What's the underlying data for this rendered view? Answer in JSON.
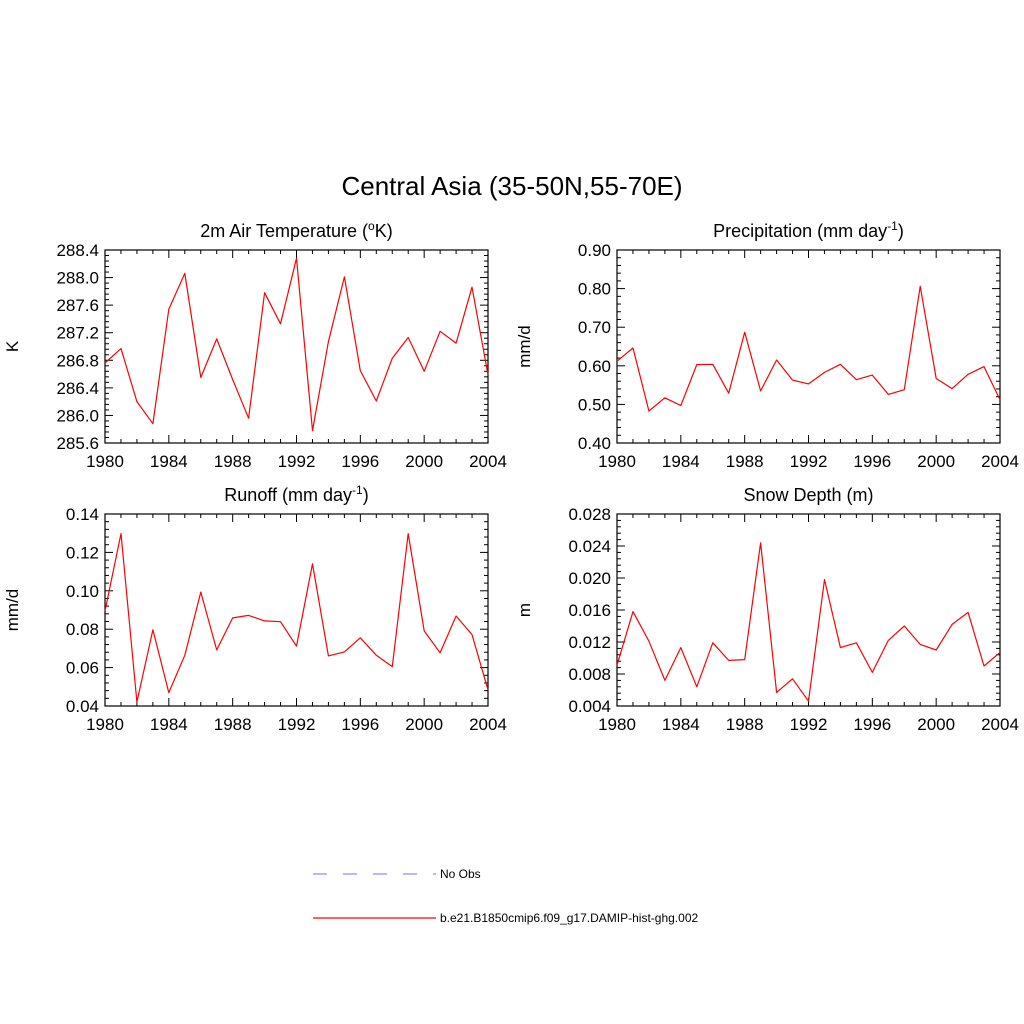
{
  "figure_title": "Central Asia (35-50N,55-70E)",
  "legend": [
    {
      "label": "No Obs",
      "color": "#8c8cff",
      "style": "dashed"
    },
    {
      "label": "b.e21.B1850cmip6.f09_g17.DAMIP-hist-ghg.002",
      "color": "#ff0000",
      "style": "solid"
    }
  ],
  "chart_data": [
    {
      "type": "line",
      "title": "2m Air Temperature (°K)",
      "title_main": "2m Air Temperature (",
      "title_sup": "o",
      "title_tail": "K)",
      "ylabel": "K",
      "xlim": [
        1980,
        2004
      ],
      "ylim": [
        285.6,
        288.4
      ],
      "xticks": [
        1980,
        1984,
        1988,
        1992,
        1996,
        2000,
        2004
      ],
      "yticks": [
        "285.6",
        "286.0",
        "286.4",
        "286.8",
        "287.2",
        "287.6",
        "288.0",
        "288.4"
      ],
      "series": [
        {
          "color": "#ff0000",
          "x": [
            1980,
            1981,
            1982,
            1983,
            1984,
            1985,
            1986,
            1987,
            1988,
            1989,
            1990,
            1991,
            1992,
            1993,
            1994,
            1995,
            1996,
            1997,
            1998,
            1999,
            2000,
            2001,
            2002,
            2003,
            2004
          ],
          "values": [
            286.76,
            286.97,
            286.2,
            285.88,
            287.54,
            288.06,
            286.55,
            287.11,
            286.52,
            285.96,
            287.78,
            287.33,
            288.28,
            285.78,
            287.07,
            288.01,
            286.65,
            286.21,
            286.83,
            287.13,
            286.64,
            287.22,
            287.05,
            287.86,
            286.59
          ]
        }
      ]
    },
    {
      "type": "line",
      "title": "Precipitation (mm day-1)",
      "title_main": "Precipitation (mm day",
      "title_sup": "-1",
      "title_tail": ")",
      "ylabel": "mm/d",
      "xlim": [
        1980,
        2004
      ],
      "ylim": [
        0.4,
        0.9
      ],
      "xticks": [
        1980,
        1984,
        1988,
        1992,
        1996,
        2000,
        2004
      ],
      "yticks": [
        "0.40",
        "0.50",
        "0.60",
        "0.70",
        "0.80",
        "0.90"
      ],
      "series": [
        {
          "color": "#ff0000",
          "x": [
            1980,
            1981,
            1982,
            1983,
            1984,
            1985,
            1986,
            1987,
            1988,
            1989,
            1990,
            1991,
            1992,
            1993,
            1994,
            1995,
            1996,
            1997,
            1998,
            1999,
            2000,
            2001,
            2002,
            2003,
            2004
          ],
          "values": [
            0.612,
            0.646,
            0.483,
            0.517,
            0.497,
            0.603,
            0.604,
            0.529,
            0.687,
            0.535,
            0.615,
            0.563,
            0.553,
            0.583,
            0.604,
            0.564,
            0.576,
            0.526,
            0.538,
            0.806,
            0.567,
            0.541,
            0.578,
            0.598,
            0.512
          ]
        }
      ]
    },
    {
      "type": "line",
      "title": "Runoff (mm day-1)",
      "title_main": "Runoff (mm day",
      "title_sup": "-1",
      "title_tail": ")",
      "ylabel": "mm/d",
      "xlim": [
        1980,
        2004
      ],
      "ylim": [
        0.04,
        0.14
      ],
      "xticks": [
        1980,
        1984,
        1988,
        1992,
        1996,
        2000,
        2004
      ],
      "yticks": [
        "0.04",
        "0.06",
        "0.08",
        "0.10",
        "0.12",
        "0.14"
      ],
      "series": [
        {
          "color": "#ff0000",
          "x": [
            1980,
            1981,
            1982,
            1983,
            1984,
            1985,
            1986,
            1987,
            1988,
            1989,
            1990,
            1991,
            1992,
            1993,
            1994,
            1995,
            1996,
            1997,
            1998,
            1999,
            2000,
            2001,
            2002,
            2003,
            2004
          ],
          "values": [
            0.0895,
            0.1298,
            0.0421,
            0.0797,
            0.047,
            0.0664,
            0.0993,
            0.0692,
            0.0859,
            0.0872,
            0.0843,
            0.0839,
            0.0712,
            0.114,
            0.0661,
            0.0682,
            0.0755,
            0.0664,
            0.0605,
            0.1298,
            0.0791,
            0.0677,
            0.0869,
            0.0772,
            0.0484
          ]
        }
      ]
    },
    {
      "type": "line",
      "title": "Snow Depth (m)",
      "title_main": "Snow Depth (m)",
      "title_sup": "",
      "title_tail": "",
      "ylabel": "m",
      "xlim": [
        1980,
        2004
      ],
      "ylim": [
        0.004,
        0.028
      ],
      "xticks": [
        1980,
        1984,
        1988,
        1992,
        1996,
        2000,
        2004
      ],
      "yticks": [
        "0.004",
        "0.008",
        "0.012",
        "0.016",
        "0.020",
        "0.024",
        "0.028"
      ],
      "series": [
        {
          "color": "#ff0000",
          "x": [
            1980,
            1981,
            1982,
            1983,
            1984,
            1985,
            1986,
            1987,
            1988,
            1989,
            1990,
            1991,
            1992,
            1993,
            1994,
            1995,
            1996,
            1997,
            1998,
            1999,
            2000,
            2001,
            2002,
            2003,
            2004
          ],
          "values": [
            0.0091,
            0.0158,
            0.0121,
            0.0072,
            0.0113,
            0.0064,
            0.0119,
            0.0097,
            0.0098,
            0.0244,
            0.0057,
            0.0074,
            0.0046,
            0.0198,
            0.0113,
            0.0119,
            0.0082,
            0.0122,
            0.014,
            0.0117,
            0.011,
            0.0142,
            0.0157,
            0.009,
            0.0107
          ]
        }
      ]
    }
  ]
}
